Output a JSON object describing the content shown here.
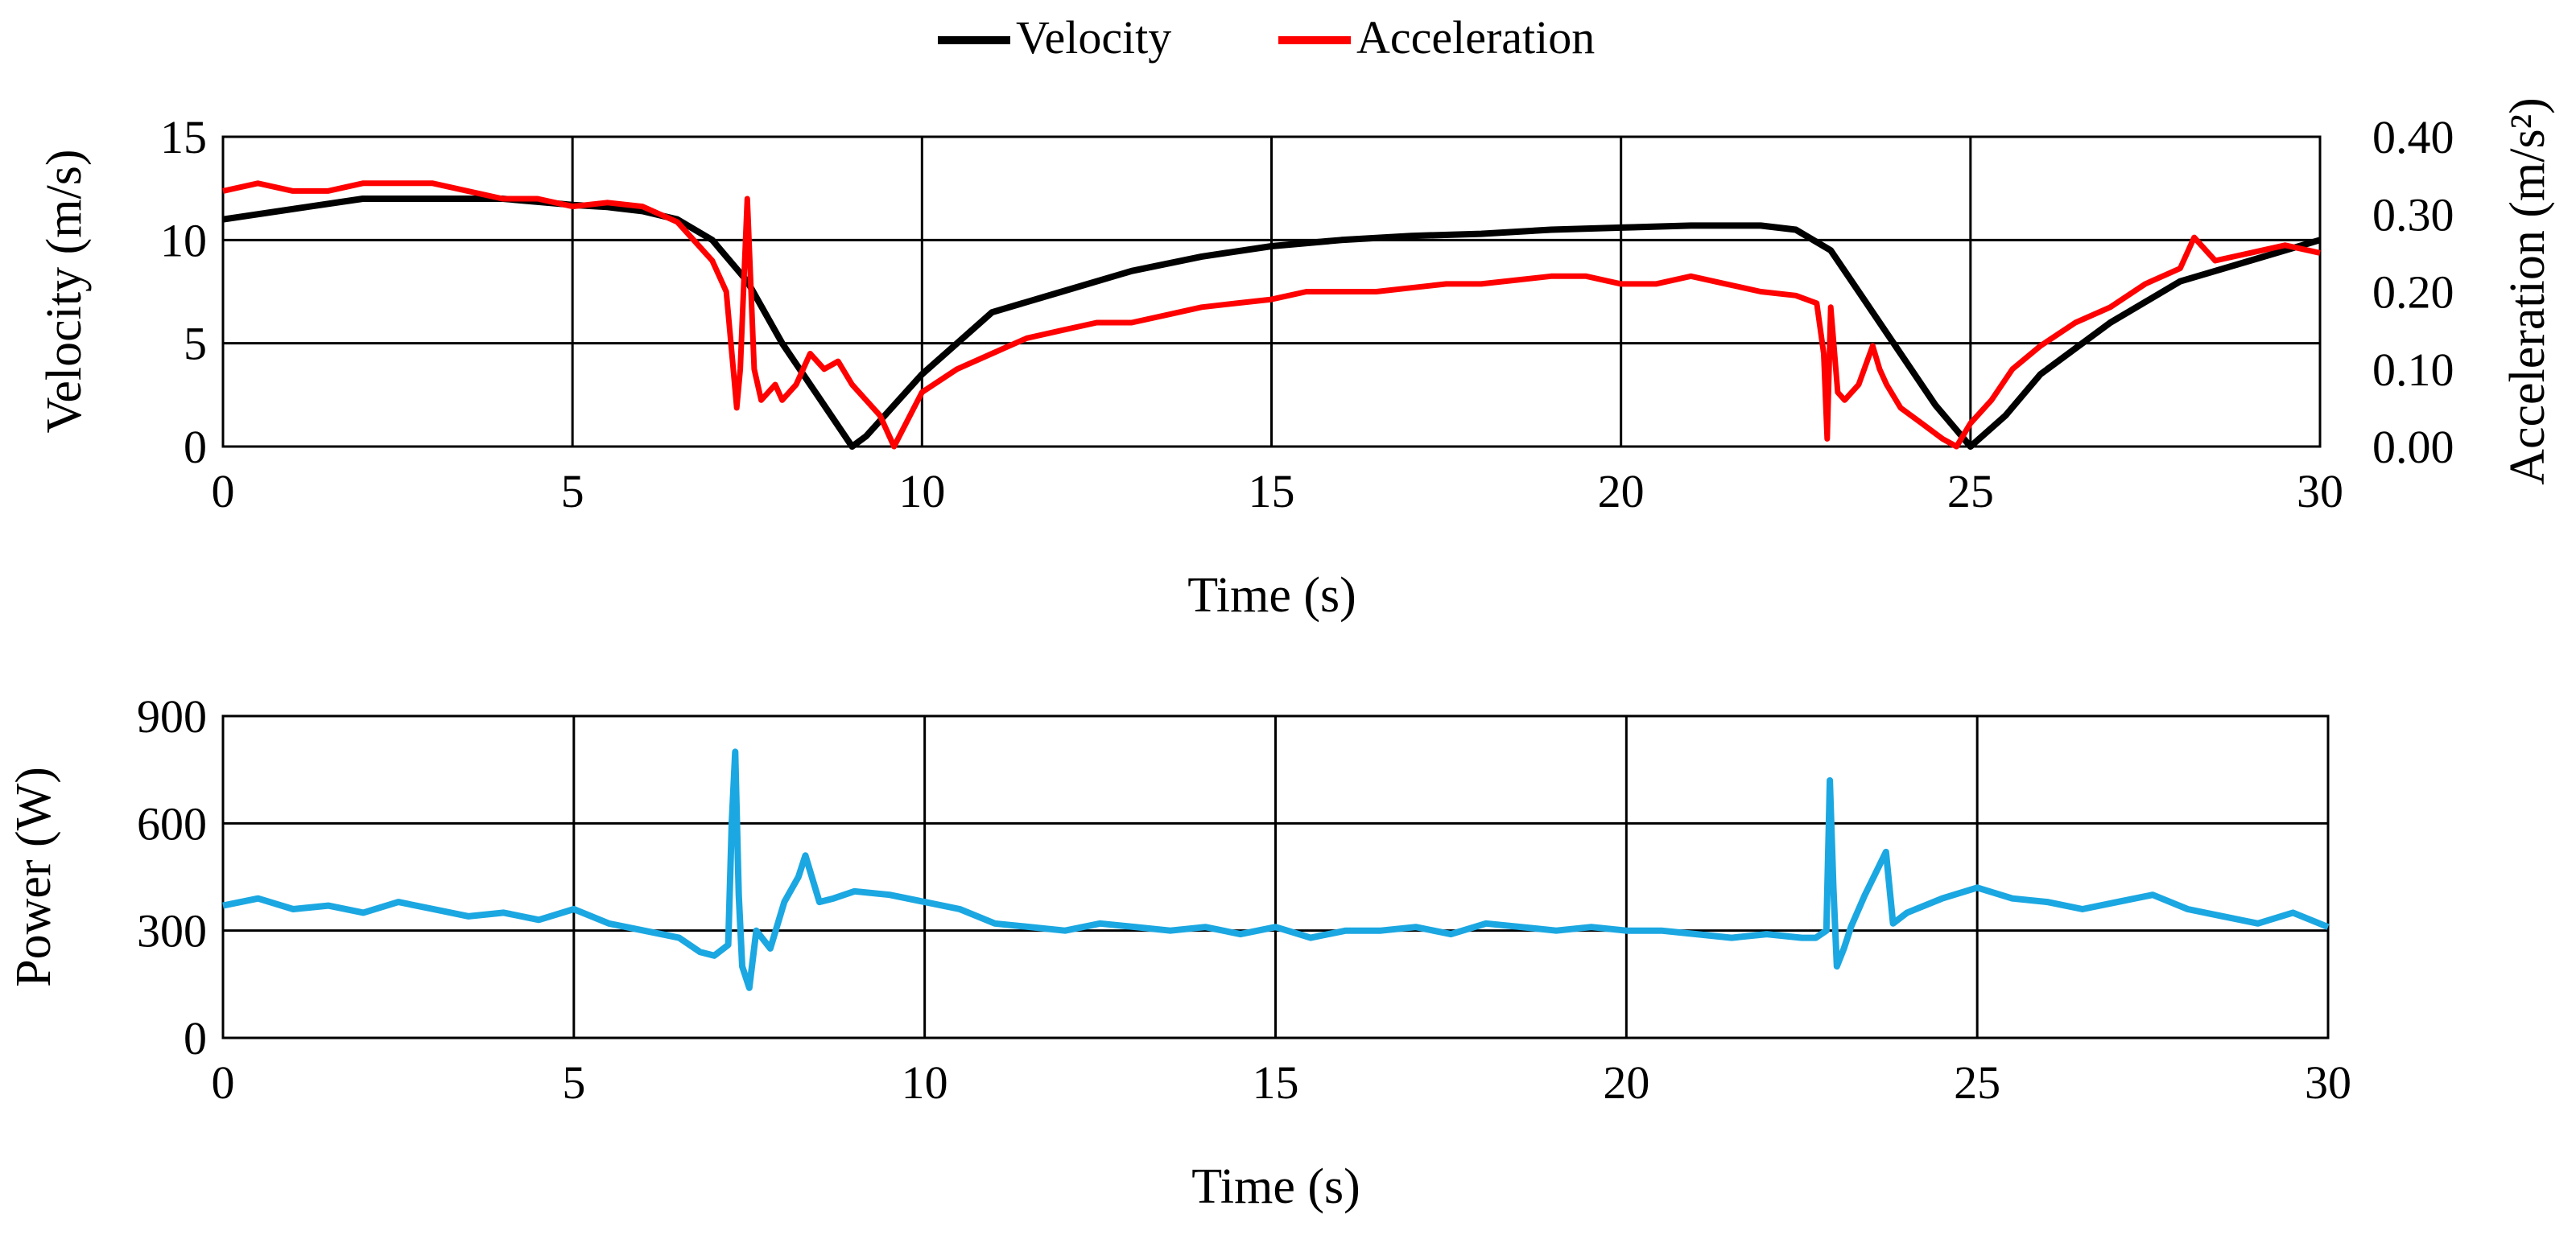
{
  "legend": {
    "items": [
      {
        "label": "Velocity",
        "color": "#000000"
      },
      {
        "label": "Acceleration",
        "color": "#ff0000"
      }
    ]
  },
  "chart_data": [
    {
      "type": "line",
      "title": "",
      "xlabel": "Time (s)",
      "ylabel": "Velocity (m/s)",
      "y2label": "Acceleration (m/s²)",
      "xlim": [
        0,
        30
      ],
      "ylim": [
        0,
        15
      ],
      "y2lim": [
        0,
        0.4
      ],
      "xticks": [
        "0",
        "5",
        "10",
        "15",
        "20",
        "25",
        "30"
      ],
      "yticks": [
        "0",
        "5",
        "10",
        "15"
      ],
      "y2ticks": [
        "0.00",
        "0.10",
        "0.20",
        "0.30",
        "0.40"
      ],
      "grid": true,
      "legend_position": "top-center",
      "series": [
        {
          "name": "Velocity",
          "axis": "left",
          "color": "#000000",
          "x": [
            0,
            1,
            2,
            3,
            4,
            5,
            5.5,
            6,
            6.5,
            7,
            7.5,
            8,
            8.5,
            9,
            9.2,
            9.6,
            10,
            10.5,
            11,
            12,
            13,
            14,
            15,
            16,
            17,
            18,
            19,
            20,
            21,
            22,
            22.5,
            23,
            23.5,
            24,
            24.5,
            25,
            25.5,
            26,
            27,
            28,
            29,
            30
          ],
          "y": [
            11,
            11.5,
            12,
            12,
            12,
            11.7,
            11.6,
            11.4,
            11,
            10,
            8,
            5,
            2.5,
            0,
            0.5,
            2,
            3.5,
            5,
            6.5,
            7.5,
            8.5,
            9.2,
            9.7,
            10,
            10.2,
            10.3,
            10.5,
            10.6,
            10.7,
            10.7,
            10.5,
            9.5,
            7,
            4.5,
            2,
            0,
            1.5,
            3.5,
            6,
            8,
            9,
            10
          ]
        },
        {
          "name": "Acceleration",
          "axis": "right",
          "color": "#ff0000",
          "x": [
            0,
            0.5,
            1,
            1.5,
            2,
            2.5,
            3,
            3.5,
            4,
            4.5,
            5,
            5.5,
            6,
            6.5,
            7,
            7.2,
            7.3,
            7.35,
            7.4,
            7.5,
            7.6,
            7.7,
            7.9,
            8,
            8.2,
            8.4,
            8.6,
            8.8,
            9,
            9.2,
            9.4,
            9.6,
            10,
            10.5,
            11,
            11.5,
            12,
            12.5,
            13,
            13.5,
            14,
            14.5,
            15,
            15.5,
            16,
            16.5,
            17,
            17.5,
            18,
            18.5,
            19,
            19.5,
            20,
            20.5,
            21,
            21.5,
            22,
            22.5,
            22.8,
            22.9,
            22.95,
            23,
            23.1,
            23.2,
            23.4,
            23.6,
            23.7,
            23.8,
            24,
            24.3,
            24.6,
            24.8,
            25,
            25.3,
            25.6,
            26,
            26.5,
            27,
            27.5,
            28,
            28.2,
            28.5,
            29,
            29.5,
            30
          ],
          "y": [
            0.33,
            0.34,
            0.33,
            0.33,
            0.34,
            0.34,
            0.34,
            0.33,
            0.32,
            0.32,
            0.31,
            0.315,
            0.31,
            0.29,
            0.24,
            0.2,
            0.1,
            0.05,
            0.1,
            0.32,
            0.1,
            0.06,
            0.08,
            0.06,
            0.08,
            0.12,
            0.1,
            0.11,
            0.08,
            0.06,
            0.04,
            0.0,
            0.07,
            0.1,
            0.12,
            0.14,
            0.15,
            0.16,
            0.16,
            0.17,
            0.18,
            0.185,
            0.19,
            0.2,
            0.2,
            0.2,
            0.205,
            0.21,
            0.21,
            0.215,
            0.22,
            0.22,
            0.21,
            0.21,
            0.22,
            0.21,
            0.2,
            0.195,
            0.185,
            0.12,
            0.01,
            0.18,
            0.07,
            0.06,
            0.08,
            0.13,
            0.1,
            0.08,
            0.05,
            0.03,
            0.01,
            0.0,
            0.03,
            0.06,
            0.1,
            0.13,
            0.16,
            0.18,
            0.21,
            0.23,
            0.27,
            0.24,
            0.25,
            0.26,
            0.25
          ]
        }
      ]
    },
    {
      "type": "line",
      "title": "",
      "xlabel": "Time (s)",
      "ylabel": "Power (W)",
      "xlim": [
        0,
        30
      ],
      "ylim": [
        0,
        900
      ],
      "xticks": [
        "0",
        "5",
        "10",
        "15",
        "20",
        "25",
        "30"
      ],
      "yticks": [
        "0",
        "300",
        "600",
        "900"
      ],
      "grid": true,
      "series": [
        {
          "name": "Power",
          "color": "#1ba7e1",
          "x": [
            0,
            0.5,
            1,
            1.5,
            2,
            2.5,
            3,
            3.5,
            4,
            4.5,
            5,
            5.5,
            6,
            6.5,
            6.8,
            7,
            7.2,
            7.25,
            7.3,
            7.35,
            7.4,
            7.5,
            7.6,
            7.8,
            8,
            8.2,
            8.3,
            8.5,
            8.7,
            9,
            9.5,
            10,
            10.5,
            11,
            11.5,
            12,
            12.5,
            13,
            13.5,
            14,
            14.5,
            15,
            15.5,
            16,
            16.5,
            17,
            17.5,
            18,
            18.5,
            19,
            19.5,
            20,
            20.5,
            21,
            21.5,
            22,
            22.5,
            22.7,
            22.85,
            22.9,
            22.95,
            23,
            23.1,
            23.2,
            23.4,
            23.6,
            23.7,
            23.8,
            24,
            24.5,
            25,
            25.5,
            26,
            26.5,
            27,
            27.5,
            28,
            28.5,
            29,
            29.5,
            30
          ],
          "y": [
            370,
            390,
            360,
            370,
            350,
            380,
            360,
            340,
            350,
            330,
            360,
            320,
            300,
            280,
            240,
            230,
            260,
            600,
            800,
            400,
            200,
            140,
            300,
            250,
            380,
            450,
            510,
            380,
            390,
            410,
            400,
            380,
            360,
            320,
            310,
            300,
            320,
            310,
            300,
            310,
            290,
            310,
            280,
            300,
            300,
            310,
            290,
            320,
            310,
            300,
            310,
            300,
            300,
            290,
            280,
            290,
            280,
            280,
            300,
            720,
            420,
            200,
            250,
            310,
            400,
            480,
            520,
            320,
            350,
            390,
            420,
            390,
            380,
            360,
            380,
            400,
            360,
            340,
            320,
            350,
            310
          ]
        }
      ]
    }
  ]
}
